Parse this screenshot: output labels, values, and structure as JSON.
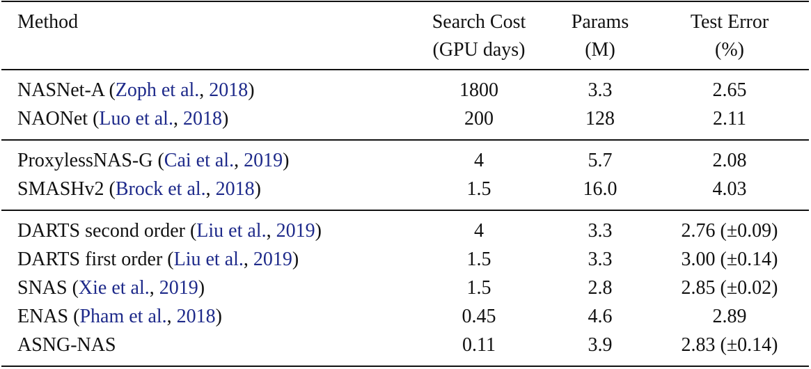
{
  "header": {
    "method": "Method",
    "columns": [
      [
        "Search Cost",
        "(GPU days)"
      ],
      [
        "Params",
        "(M)"
      ],
      [
        "Test Error",
        "(%)"
      ]
    ]
  },
  "groups": [
    [
      {
        "method": [
          {
            "text": "NASNet-A (",
            "cite": false
          },
          {
            "text": "Zoph et al.",
            "cite": true
          },
          {
            "text": ", ",
            "cite": false
          },
          {
            "text": "2018",
            "cite": true
          },
          {
            "text": ")",
            "cite": false
          }
        ],
        "cells": [
          "1800",
          "3.3",
          "2.65"
        ]
      },
      {
        "method": [
          {
            "text": "NAONet (",
            "cite": false
          },
          {
            "text": "Luo et al.",
            "cite": true
          },
          {
            "text": ", ",
            "cite": false
          },
          {
            "text": "2018",
            "cite": true
          },
          {
            "text": ")",
            "cite": false
          }
        ],
        "cells": [
          "200",
          "128",
          "2.11"
        ]
      }
    ],
    [
      {
        "method": [
          {
            "text": "ProxylessNAS-G (",
            "cite": false
          },
          {
            "text": "Cai et al.",
            "cite": true
          },
          {
            "text": ", ",
            "cite": false
          },
          {
            "text": "2019",
            "cite": true
          },
          {
            "text": ")",
            "cite": false
          }
        ],
        "cells": [
          "4",
          "5.7",
          "2.08"
        ]
      },
      {
        "method": [
          {
            "text": "SMASHv2 (",
            "cite": false
          },
          {
            "text": "Brock et al.",
            "cite": true
          },
          {
            "text": ", ",
            "cite": false
          },
          {
            "text": "2018",
            "cite": true
          },
          {
            "text": ")",
            "cite": false
          }
        ],
        "cells": [
          "1.5",
          "16.0",
          "4.03"
        ]
      }
    ],
    [
      {
        "method": [
          {
            "text": "DARTS second order (",
            "cite": false
          },
          {
            "text": "Liu et al.",
            "cite": true
          },
          {
            "text": ", ",
            "cite": false
          },
          {
            "text": "2019",
            "cite": true
          },
          {
            "text": ")",
            "cite": false
          }
        ],
        "cells": [
          "4",
          "3.3",
          "2.76 (±0.09)"
        ]
      },
      {
        "method": [
          {
            "text": "DARTS first order (",
            "cite": false
          },
          {
            "text": "Liu et al.",
            "cite": true
          },
          {
            "text": ", ",
            "cite": false
          },
          {
            "text": "2019",
            "cite": true
          },
          {
            "text": ")",
            "cite": false
          }
        ],
        "cells": [
          "1.5",
          "3.3",
          "3.00 (±0.14)"
        ]
      },
      {
        "method": [
          {
            "text": "SNAS (",
            "cite": false
          },
          {
            "text": "Xie et al.",
            "cite": true
          },
          {
            "text": ", ",
            "cite": false
          },
          {
            "text": "2019",
            "cite": true
          },
          {
            "text": ")",
            "cite": false
          }
        ],
        "cells": [
          "1.5",
          "2.8",
          "2.85 (±0.02)"
        ]
      },
      {
        "method": [
          {
            "text": "ENAS (",
            "cite": false
          },
          {
            "text": "Pham et al.",
            "cite": true
          },
          {
            "text": ", ",
            "cite": false
          },
          {
            "text": "2018",
            "cite": true
          },
          {
            "text": ")",
            "cite": false
          }
        ],
        "cells": [
          "0.45",
          "4.6",
          "2.89"
        ]
      },
      {
        "method": [
          {
            "text": "ASNG-NAS",
            "cite": false
          }
        ],
        "cells": [
          "0.11",
          "3.9",
          "2.83 (±0.14)"
        ]
      }
    ]
  ]
}
